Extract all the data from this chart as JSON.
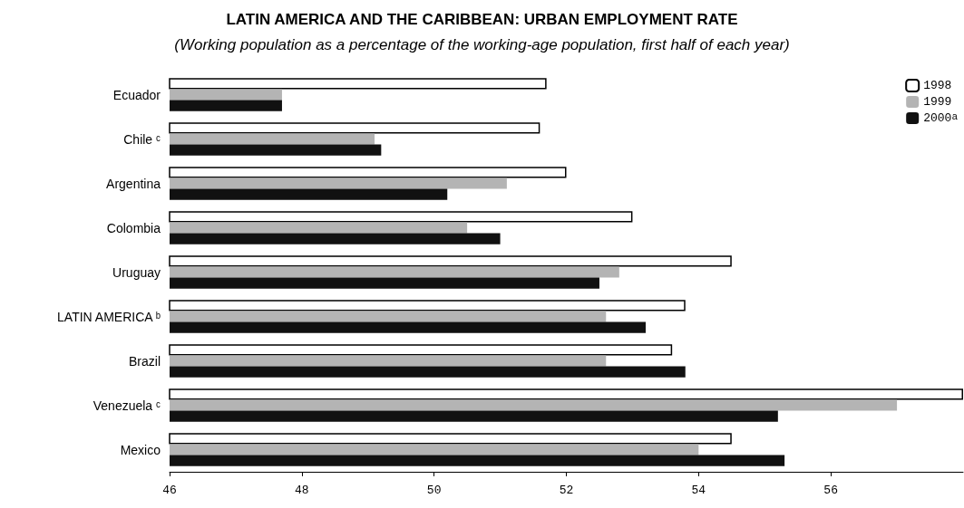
{
  "chart_data": {
    "type": "bar",
    "orientation": "horizontal",
    "title": "LATIN AMERICA AND THE CARIBBEAN: URBAN EMPLOYMENT RATE",
    "subtitle": "(Working population as a percentage of the working-age population, first half of each year)",
    "categories": [
      "Ecuador",
      "Chile ᶜ",
      "Argentina",
      "Colombia",
      "Uruguay",
      "LATIN AMERICA ᵇ",
      "Brazil",
      "Venezuela ᶜ",
      "Mexico"
    ],
    "series": [
      {
        "name": "1998",
        "color": "#ffffff",
        "values": [
          51.7,
          51.6,
          52.0,
          53.0,
          54.5,
          53.8,
          53.6,
          58.0,
          54.5
        ]
      },
      {
        "name": "1999",
        "color": "#b4b4b4",
        "values": [
          47.7,
          49.1,
          51.1,
          50.5,
          52.8,
          52.6,
          52.6,
          57.0,
          54.0
        ]
      },
      {
        "name": "2000$^{a}$",
        "color": "#111111",
        "values": [
          47.7,
          49.2,
          50.2,
          51.0,
          52.5,
          53.2,
          53.8,
          55.2,
          55.3
        ]
      }
    ],
    "xlim": [
      46,
      58
    ],
    "xticks": [
      46,
      48,
      50,
      52,
      54,
      56
    ],
    "grid": false,
    "legend": "top right"
  }
}
